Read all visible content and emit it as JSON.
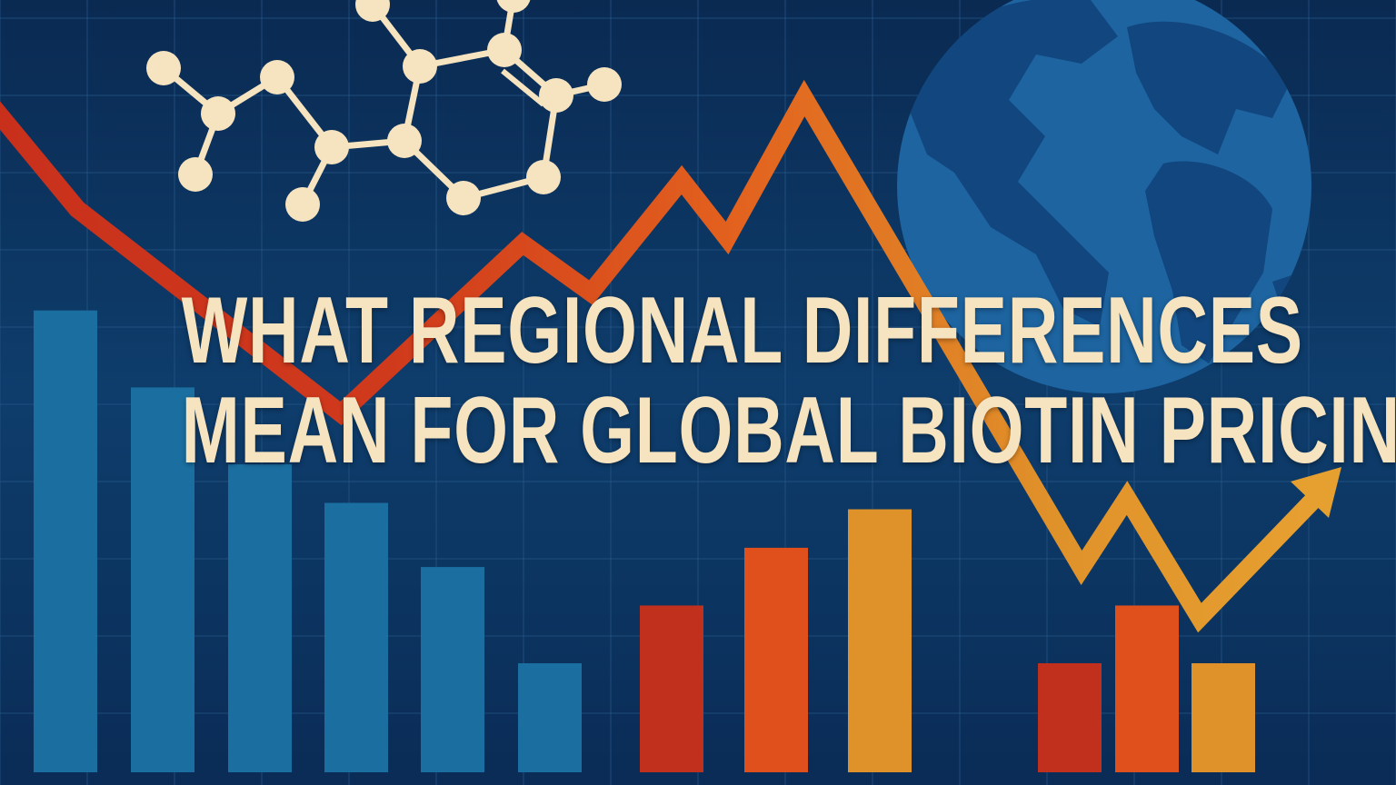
{
  "title": {
    "line1": "WHAT REGIONAL DIFFERENCES",
    "line2": "MEAN FOR GLOBAL BIOTIN PRICING"
  },
  "colors": {
    "background": "#0b3260",
    "blue_bar": "#1a6fa0",
    "red": "#c0301c",
    "orange": "#e0501c",
    "amber": "#e0922a",
    "cream": "#f6e3bf",
    "globe": "#1d64a0"
  },
  "decorations": {
    "icons": [
      "molecule-icon",
      "globe-icon",
      "trend-arrow-icon"
    ],
    "blue_bar_levels": [
      0.72,
      0.6,
      0.48,
      0.42,
      0.32,
      0.17
    ],
    "warm_bar_levels": [
      0.26,
      0.35,
      0.41
    ],
    "right_bar_levels": [
      0.17,
      0.26,
      0.17
    ]
  }
}
